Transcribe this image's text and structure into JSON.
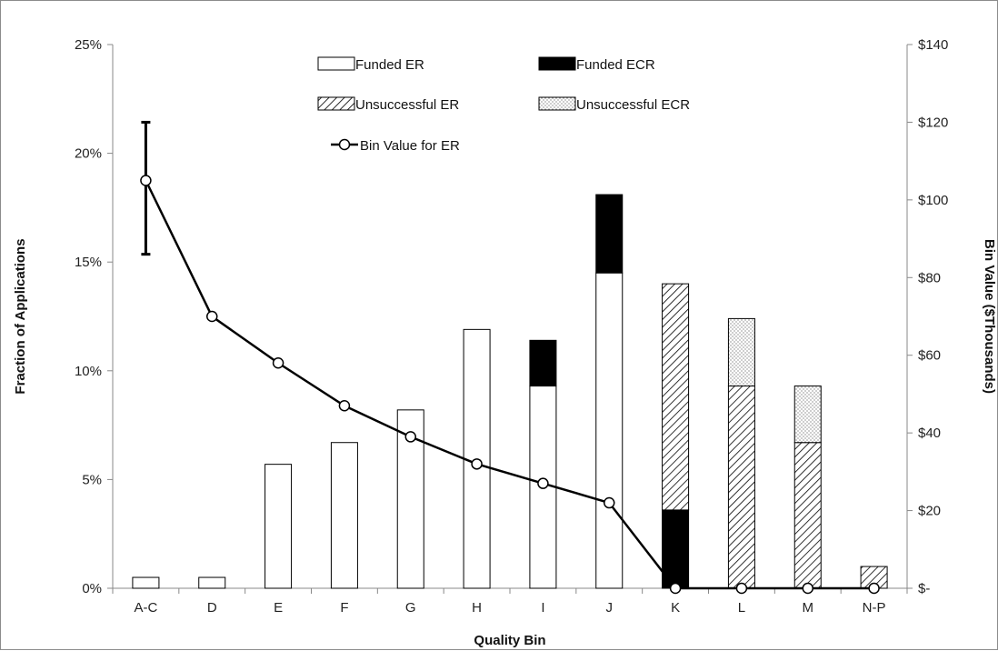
{
  "chart_data": {
    "type": "bar",
    "stacked": true,
    "xlabel": "Quality Bin",
    "ylabel": "Fraction of Applications",
    "y2label": "Bin Value ($Thousands)",
    "categories": [
      "A-C",
      "D",
      "E",
      "F",
      "G",
      "H",
      "I",
      "J",
      "K",
      "L",
      "M",
      "N-P"
    ],
    "ylim": [
      0,
      25
    ],
    "yticks": [
      0,
      5,
      10,
      15,
      20,
      25
    ],
    "ytick_labels": [
      "0%",
      "5%",
      "10%",
      "15%",
      "20%",
      "25%"
    ],
    "y2lim": [
      0,
      140
    ],
    "y2ticks": [
      0,
      20,
      40,
      60,
      80,
      100,
      120,
      140
    ],
    "y2tick_labels": [
      "$-",
      "$20",
      "$40",
      "$60",
      "$80",
      "$100",
      "$120",
      "$140"
    ],
    "series": [
      {
        "name": "Funded ER",
        "pattern": "white",
        "values": [
          0.5,
          0.5,
          5.7,
          6.7,
          8.2,
          11.9,
          9.3,
          14.5,
          0,
          0,
          0,
          0
        ]
      },
      {
        "name": "Funded ECR",
        "pattern": "black",
        "values": [
          0,
          0,
          0,
          0,
          0,
          0,
          2.1,
          3.6,
          3.6,
          0,
          0,
          0
        ]
      },
      {
        "name": "Unsuccessful ER",
        "pattern": "hatch",
        "values": [
          0,
          0,
          0,
          0,
          0,
          0,
          0,
          0,
          10.4,
          9.3,
          6.7,
          1.0
        ]
      },
      {
        "name": "Unsuccessful ECR",
        "pattern": "dots",
        "values": [
          0,
          0,
          0,
          0,
          0,
          0,
          0,
          0,
          0,
          3.1,
          2.6,
          0
        ]
      }
    ],
    "line": {
      "name": "Bin Value for ER",
      "axis": "right",
      "values": [
        105,
        70,
        58,
        47,
        39,
        32,
        27,
        22,
        0,
        0,
        0,
        0
      ],
      "error_bar": {
        "category": "A-C",
        "low": 86,
        "high": 120
      }
    },
    "legend": {
      "placement": "top-center",
      "entries": [
        "Funded ER",
        "Funded ECR",
        "Unsuccessful ER",
        "Unsuccessful ECR",
        "Bin Value for ER"
      ]
    },
    "colors": {
      "bar_border": "#000000",
      "line": "#000000",
      "marker_fill": "#ffffff",
      "axis": "#888888"
    }
  }
}
